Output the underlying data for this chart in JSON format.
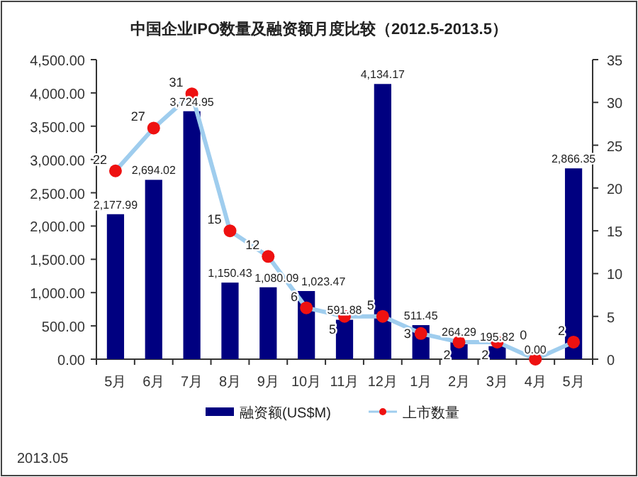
{
  "chart_data": {
    "type": "bar",
    "title": "中国企业IPO数量及融资额月度比较（2012.5-2013.5）",
    "categories": [
      "5月",
      "6月",
      "7月",
      "8月",
      "9月",
      "10月",
      "11月",
      "12月",
      "1月",
      "2月",
      "3月",
      "4月",
      "5月"
    ],
    "series": [
      {
        "name": "融资额(US$M)",
        "type": "bar",
        "color": "#000080",
        "values": [
          2177.99,
          2694.02,
          3724.95,
          1150.43,
          1080.09,
          1023.47,
          591.88,
          4134.17,
          511.45,
          264.29,
          195.82,
          0.0,
          2866.35
        ],
        "value_labels": [
          "2,177.99",
          "2,694.02",
          "3,724.95",
          "1,150.43",
          "1,080.09",
          "1,023.47",
          "591.88",
          "4,134.17",
          "511.45",
          "264.29",
          "195.82",
          "0.00",
          "2,866.35"
        ]
      },
      {
        "name": "上市数量",
        "type": "line",
        "axis": "y2",
        "color": "#ee1111",
        "values": [
          22,
          27,
          31,
          15,
          12,
          6,
          5,
          5,
          3,
          2,
          2,
          0,
          2
        ]
      }
    ],
    "ylim": [
      0,
      4500
    ],
    "yticks": [
      {
        "value": 0,
        "label": "0.00"
      },
      {
        "value": 500,
        "label": "500.00"
      },
      {
        "value": 1000,
        "label": "1,000.00"
      },
      {
        "value": 1500,
        "label": "1,500.00"
      },
      {
        "value": 2000,
        "label": "2,000.00"
      },
      {
        "value": 2500,
        "label": "2,500.00"
      },
      {
        "value": 3000,
        "label": "3,000.00"
      },
      {
        "value": 3500,
        "label": "3,500.00"
      },
      {
        "value": 4000,
        "label": "4,000.00"
      },
      {
        "value": 4500,
        "label": "4,500.00"
      }
    ],
    "y2lim": [
      0,
      35
    ],
    "y2ticks": [
      0,
      5,
      10,
      15,
      20,
      25,
      30,
      35
    ],
    "data_labels": true,
    "legend": "bottom",
    "marker": "circle",
    "annotations": [
      "2013.05"
    ]
  }
}
